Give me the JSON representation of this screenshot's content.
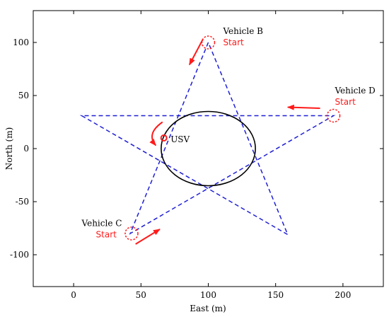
{
  "chart_data": {
    "type": "line",
    "xlabel": "East (m)",
    "ylabel": "North (m)",
    "xlim": [
      -30,
      230
    ],
    "ylim": [
      -130,
      130
    ],
    "xticks": [
      0,
      50,
      100,
      150,
      200
    ],
    "yticks": [
      100,
      50,
      0,
      -50,
      -100
    ],
    "grid": false,
    "colors": {
      "path": "#1f1fd6",
      "usv": "#000000",
      "marker": "#ff1a1a"
    },
    "series": [
      {
        "style": "dashed",
        "points": [
          [
            100,
            100
          ],
          [
            42,
            -80
          ],
          [
            193,
            31
          ],
          [
            6,
            31
          ],
          [
            159,
            -81
          ],
          [
            100,
            100
          ]
        ]
      },
      {
        "style": "solid",
        "shape": "ellipse",
        "center": [
          100,
          0
        ],
        "radius_x": 35,
        "radius_y": 35
      }
    ],
    "start_markers": [
      [
        100,
        100
      ],
      [
        193,
        31
      ],
      [
        43,
        -80
      ],
      [
        67,
        10
      ]
    ],
    "arrows": [
      {
        "from": [
          96,
          103
        ],
        "to": [
          86,
          79
        ]
      },
      {
        "from": [
          183,
          38
        ],
        "to": [
          159,
          39
        ]
      },
      {
        "from": [
          46,
          -90
        ],
        "to": [
          64,
          -76
        ]
      },
      {
        "from": [
          66,
          25
        ],
        "to": [
          61,
          3
        ],
        "curved": true
      }
    ],
    "annotations": [
      {
        "id": "vehicle-b",
        "name": "Vehicle B",
        "start": "Start",
        "at": [
          111,
          108
        ]
      },
      {
        "id": "vehicle-d",
        "name": "Vehicle D",
        "start": "Start",
        "at": [
          194,
          52
        ]
      },
      {
        "id": "vehicle-c",
        "name": "Vehicle C",
        "start": "Start",
        "at": [
          6,
          -73
        ]
      },
      {
        "id": "usv",
        "name": "USV",
        "at": [
          72,
          6
        ]
      }
    ]
  }
}
